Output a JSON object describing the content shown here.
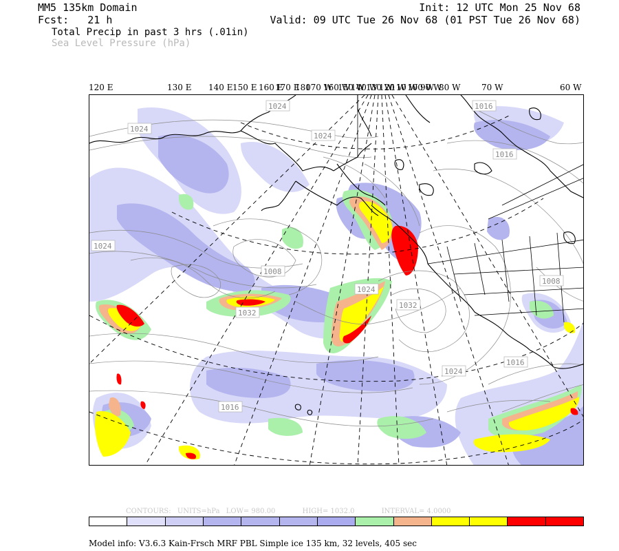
{
  "header": {
    "domain": "MM5 135km Domain",
    "fcst_label": "Fcst:",
    "fcst_value": "21 h",
    "init": "Init: 12 UTC Mon 25 Nov 68",
    "valid": "Valid: 09 UTC Tue 26 Nov 68 (01 PST Tue 26 Nov 68)",
    "field1": "Total Precip in past 3 hrs (.01in)",
    "field2": "Sea Level Pressure (hPa)"
  },
  "longitude_labels": [
    "120 E",
    "130 E",
    "140 E",
    "150 E",
    "160 E",
    "170 E",
    "180",
    "170 W",
    "160 W",
    "150 W",
    "140 W",
    "130 W",
    "120 W",
    "110 W",
    "100 W",
    "90 W",
    "80 W",
    "70 W",
    "60 W"
  ],
  "isobar_labels": [
    "1024",
    "1024",
    "1024",
    "1016",
    "1016",
    "1024",
    "1008",
    "1024",
    "1032",
    "1008",
    "1024",
    "1016",
    "1016",
    "1032"
  ],
  "contour_info": {
    "contours": "CONTOURS:",
    "units": "UNITS=hPa",
    "low": "LOW=   980.00",
    "high": "HIGH=  1032.0",
    "interval": "INTERVAL=    4.0000"
  },
  "colorbar": [
    "#ffffff",
    "#e0e0fa",
    "#cfcff5",
    "#b4b4ef",
    "#b4b4ef",
    "#b4b4ef",
    "#aaaaee",
    "#aaf0aa",
    "#f5b48c",
    "#ffff00",
    "#ffff00",
    "#ff0000",
    "#ff0000"
  ],
  "colors": {
    "precip_light": "#d8d8f8",
    "precip_med": "#b4b4ef",
    "precip_green": "#aaf0aa",
    "precip_orange": "#f5b48c",
    "precip_yellow": "#ffff00",
    "precip_red": "#ff0000"
  },
  "model_info": "Model info: V3.6.3 Kain-Frsch MRF PBL    Simple ice  135 km,  32 levels,  405 sec"
}
